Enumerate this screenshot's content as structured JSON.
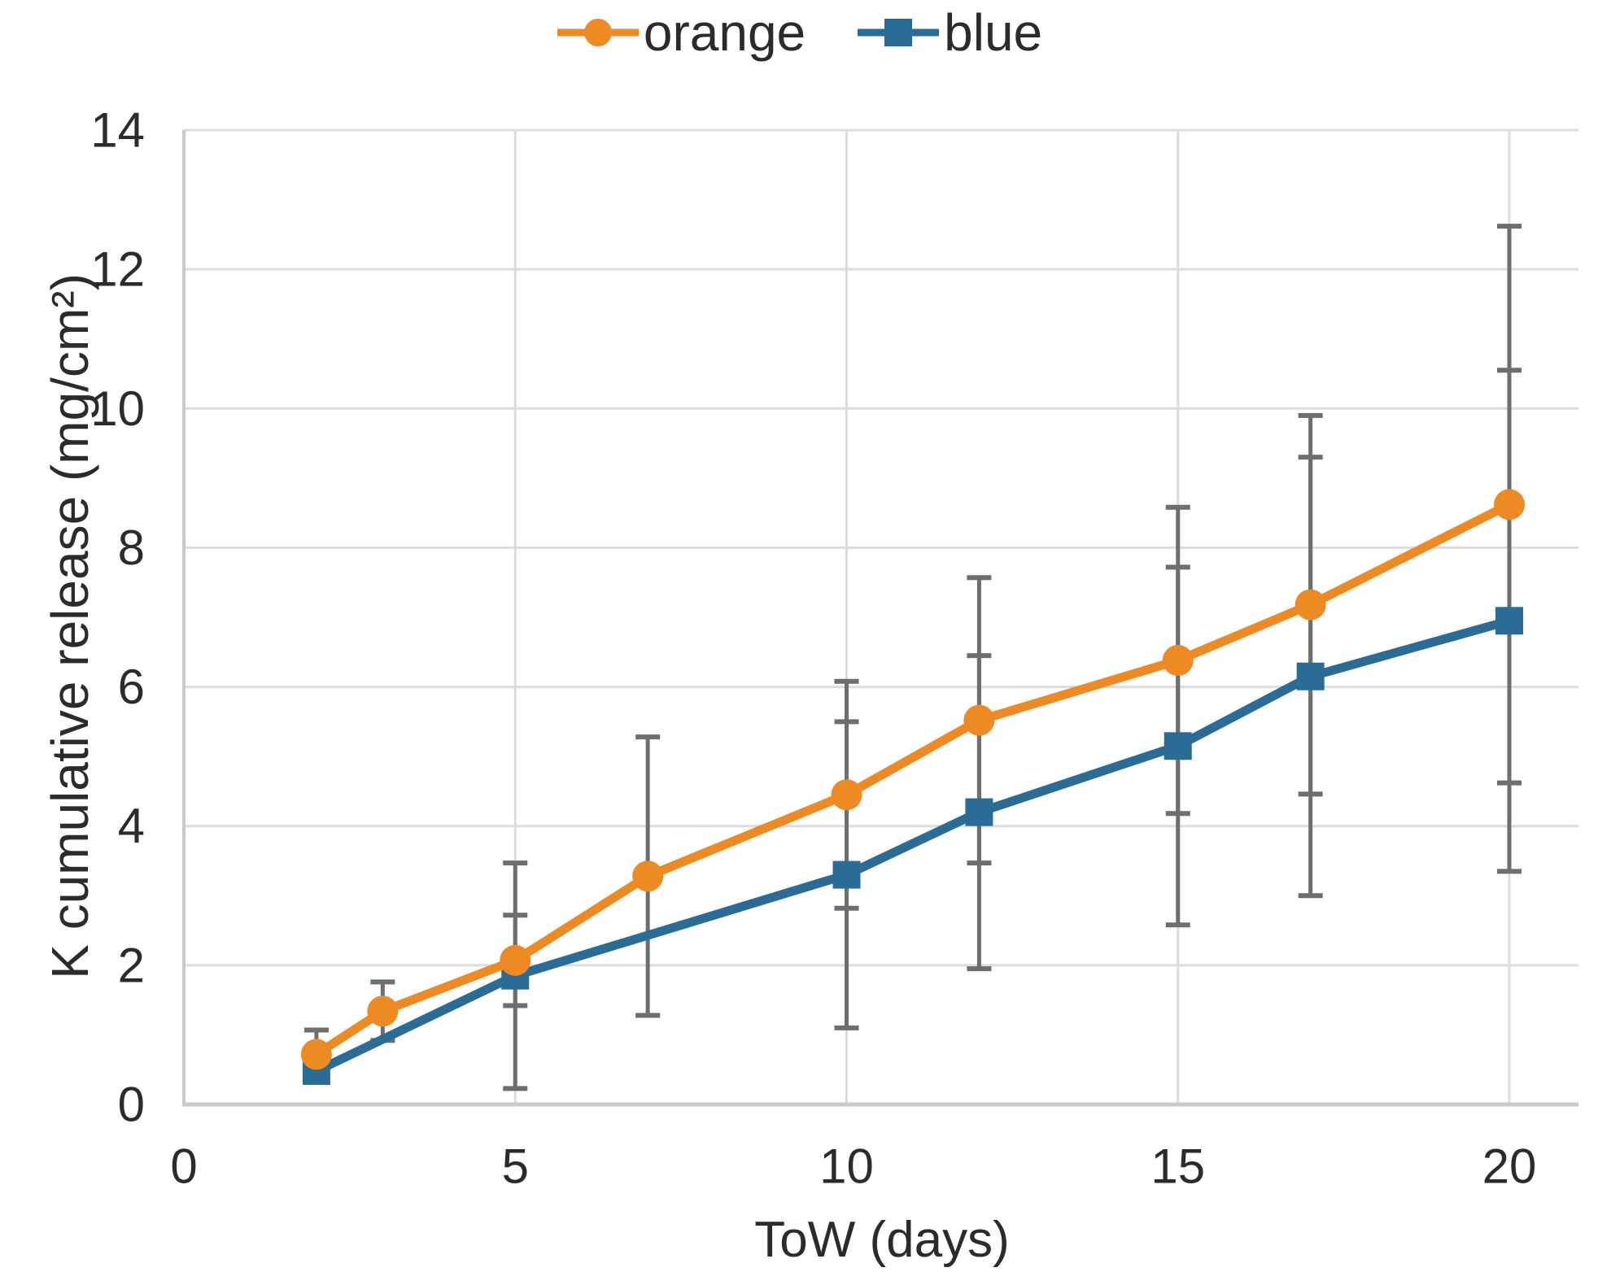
{
  "chart_data": {
    "type": "line",
    "title": "",
    "xlabel": "ToW (days)",
    "ylabel": "K cumulative release (mg/cm²)",
    "xlim": [
      0,
      21
    ],
    "ylim": [
      0,
      14
    ],
    "xticks": [
      0,
      5,
      10,
      15,
      20
    ],
    "yticks": [
      0,
      2,
      4,
      6,
      8,
      10,
      12,
      14
    ],
    "grid": true,
    "legend_position": "top-center",
    "style": {
      "grid_color": "#dcdcdc",
      "axis_color": "#c9c9c9",
      "error_bar_color": "#6e6e6e",
      "text_color": "#2b2b2b",
      "background": "#ffffff"
    },
    "series": [
      {
        "name": "orange",
        "color": "#ed8a23",
        "marker": "circle",
        "x": [
          2,
          3,
          5,
          7,
          10,
          12,
          15,
          17,
          20
        ],
        "y": [
          0.72,
          1.34,
          2.07,
          3.28,
          4.45,
          5.52,
          6.38,
          7.18,
          8.62
        ],
        "yerr": [
          0.35,
          0.42,
          0.65,
          2.0,
          1.63,
          2.05,
          2.2,
          2.72,
          4.0
        ]
      },
      {
        "name": "blue",
        "color": "#2b6c97",
        "marker": "square",
        "x": [
          2,
          5,
          10,
          12,
          15,
          17,
          20
        ],
        "y": [
          0.48,
          1.85,
          3.3,
          4.2,
          5.15,
          6.15,
          6.95
        ],
        "yerr": [
          0.15,
          1.62,
          2.2,
          2.25,
          2.57,
          3.15,
          3.6
        ]
      }
    ]
  }
}
